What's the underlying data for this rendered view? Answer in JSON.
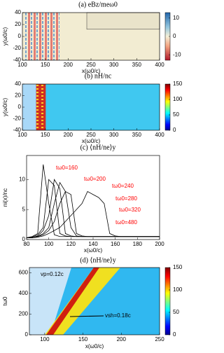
{
  "chart_data": [
    {
      "type": "heatmap",
      "title": "(a) eBz/meω0",
      "xlabel": "x(ω0/c)",
      "ylabel": "y(ω0/c)",
      "xlim": [
        100,
        400
      ],
      "xticks": [
        100,
        150,
        200,
        250,
        300,
        350,
        400
      ],
      "ylim": [
        -40,
        40
      ],
      "yticks": [
        -40,
        -20,
        0,
        20,
        40
      ],
      "clim": [
        -13,
        13
      ],
      "cticks": [
        -10,
        0,
        10
      ]
    },
    {
      "type": "heatmap",
      "title": "(b) nH/nc",
      "xlabel": "x(ω0/c)",
      "ylabel": "y(ω0/c)",
      "xlim": [
        100,
        400
      ],
      "xticks": [
        100,
        150,
        200,
        250,
        300,
        350,
        400
      ],
      "ylim": [
        -40,
        40
      ],
      "yticks": [
        -40,
        -20,
        0,
        20,
        40
      ],
      "clim": [
        0,
        150
      ],
      "cticks": [
        0,
        50,
        100,
        150
      ]
    },
    {
      "type": "line",
      "title": "(c) ⟨nH/ne⟩y",
      "xlabel": "x(ω0/c)",
      "ylabel": "ni(x)/nc",
      "xlim": [
        80,
        200
      ],
      "xticks": [
        80,
        100,
        120,
        140,
        160,
        180,
        200
      ],
      "ylim": [
        0,
        14
      ],
      "yticks": [
        0,
        5,
        10
      ],
      "label_color": "#ff0000",
      "x": [
        80,
        85,
        90,
        95,
        100,
        105,
        110,
        115,
        120,
        125,
        130,
        135,
        140,
        145,
        150,
        155,
        160,
        165,
        170,
        175,
        180,
        185,
        190,
        195,
        200
      ],
      "series": [
        {
          "name": "tω0=160",
          "color": "#000000",
          "values": [
            0.3,
            0.5,
            1.0,
            12.5,
            6,
            0.8,
            0.5,
            0.5,
            0.5,
            0.5,
            0.5,
            0.5,
            0.5,
            0.5,
            0.5,
            0.5,
            0.5,
            0.5,
            0.5,
            0.5,
            0.5,
            0.5,
            0.5,
            0.5,
            0.5
          ]
        },
        {
          "name": "tω0=200",
          "color": "#000000",
          "values": [
            0.3,
            0.4,
            0.8,
            2,
            10,
            9,
            1,
            0.6,
            0.5,
            0.5,
            0.5,
            0.5,
            0.5,
            0.5,
            0.5,
            0.5,
            0.5,
            0.5,
            0.5,
            0.5,
            0.5,
            0.5,
            0.5,
            0.5,
            0.5
          ]
        },
        {
          "name": "tω0=240",
          "color": "#000000",
          "values": [
            0.3,
            0.3,
            0.6,
            1.5,
            4,
            10,
            8.5,
            1,
            0.6,
            0.5,
            0.5,
            0.5,
            0.5,
            0.5,
            0.5,
            0.5,
            0.5,
            0.5,
            0.5,
            0.5,
            0.5,
            0.5,
            0.5,
            0.5,
            0.5
          ]
        },
        {
          "name": "tω0=280",
          "color": "#000000",
          "values": [
            0.3,
            0.3,
            0.5,
            1,
            2,
            6,
            9.5,
            8,
            2,
            0.6,
            0.5,
            0.5,
            0.5,
            0.5,
            0.5,
            0.5,
            0.5,
            0.5,
            0.5,
            0.5,
            0.5,
            0.5,
            0.5,
            0.5,
            0.5
          ]
        },
        {
          "name": "tω0=320",
          "color": "#000000",
          "values": [
            0.3,
            0.3,
            0.5,
            0.8,
            1.5,
            3,
            6,
            8,
            7.5,
            1,
            0.6,
            0.5,
            0.5,
            0.5,
            0.5,
            0.5,
            0.5,
            0.5,
            0.5,
            0.5,
            0.5,
            0.5,
            0.5,
            0.5,
            0.5
          ]
        },
        {
          "name": "tω0=480",
          "color": "#000000",
          "values": [
            0.3,
            0.3,
            0.4,
            0.6,
            1,
            1.5,
            2,
            3,
            4,
            5,
            6,
            8,
            7.5,
            7,
            6,
            1,
            0.6,
            0.5,
            0.5,
            0.5,
            0.5,
            0.5,
            0.5,
            0.5,
            0.5
          ]
        }
      ]
    },
    {
      "type": "heatmap",
      "title": "(d) ⟨nH/ne⟩y",
      "xlabel": "x(ω0/c)",
      "ylabel": "tω0",
      "xlim": [
        80,
        250
      ],
      "xticks": [
        100,
        150,
        200,
        250
      ],
      "ylim": [
        0,
        650
      ],
      "yticks": [
        0,
        200,
        400,
        600
      ],
      "clim": [
        0,
        150
      ],
      "cticks": [
        0,
        50,
        100,
        150
      ],
      "annotations": [
        "vp=0.12c",
        "vsh=0.18c"
      ]
    }
  ]
}
